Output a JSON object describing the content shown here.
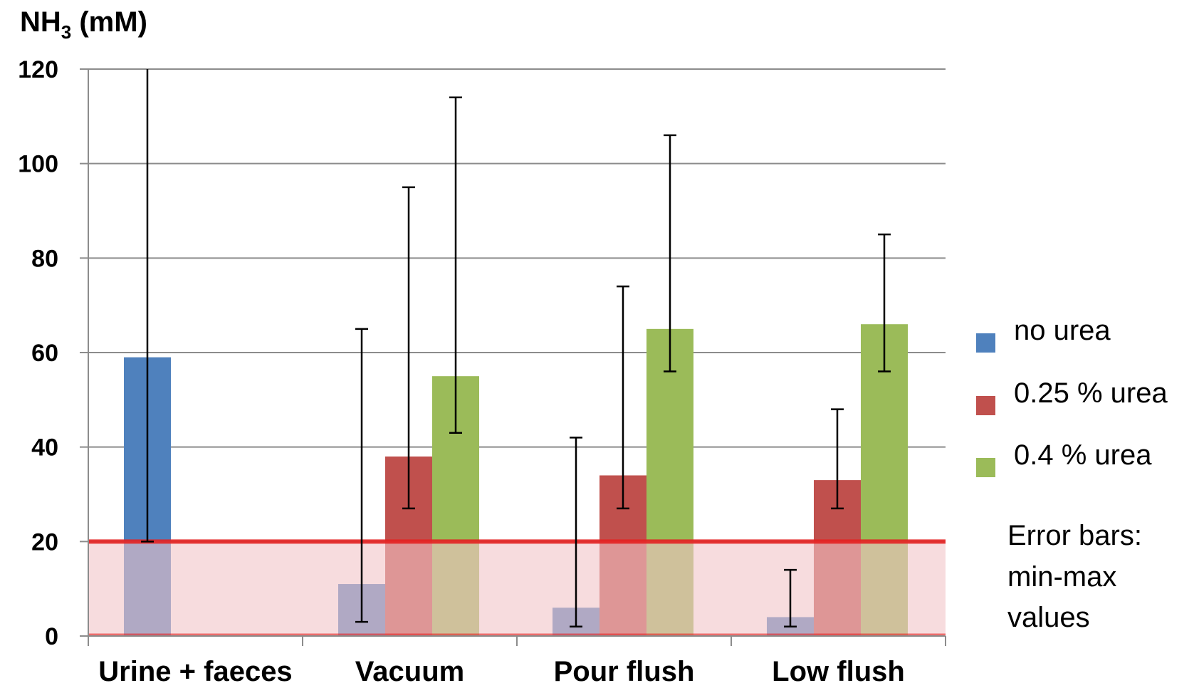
{
  "chart_data": {
    "type": "bar",
    "ylabel": {
      "main": "NH",
      "subscript": "3",
      "unit": " (mM)"
    },
    "ylim": [
      0,
      120
    ],
    "yticks": [
      0,
      20,
      40,
      60,
      80,
      100,
      120
    ],
    "grid": true,
    "categories": [
      "Urine + faeces",
      "Vacuum",
      "Pour flush",
      "Low flush"
    ],
    "series": [
      {
        "name": "no urea",
        "color": "#4f81bd",
        "values": [
          59,
          11,
          6,
          4
        ],
        "err_min": [
          20,
          3,
          2,
          2
        ],
        "err_max": [
          120,
          65,
          42,
          14
        ]
      },
      {
        "name": "0.25 % urea",
        "color": "#c0504d",
        "values": [
          null,
          38,
          34,
          33
        ],
        "err_min": [
          null,
          27,
          27,
          27
        ],
        "err_max": [
          null,
          95,
          74,
          48
        ]
      },
      {
        "name": "0.4 % urea",
        "color": "#9bbb59",
        "values": [
          null,
          55,
          65,
          66
        ],
        "err_min": [
          null,
          43,
          56,
          56
        ],
        "err_max": [
          null,
          114,
          106,
          85
        ]
      }
    ],
    "threshold": {
      "value": 20,
      "color": "#e52222",
      "band_color": "#f2c4c8"
    },
    "legend_position": "right",
    "note": [
      "Error bars:",
      "min-max",
      "values"
    ]
  }
}
